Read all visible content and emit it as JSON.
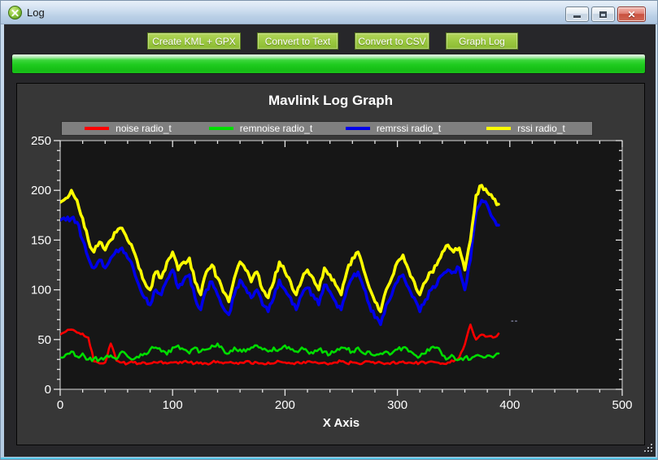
{
  "window": {
    "title": "Log"
  },
  "toolbar": {
    "buttons": [
      "Create KML + GPX",
      "Convert to Text",
      "Convert to CSV",
      "Graph Log"
    ]
  },
  "progress": {
    "percent": 100,
    "color": "#1ecb1e"
  },
  "chart": {
    "artifact_text": "--",
    "legend_background": "#7f7f7f",
    "plot_border_color": "#d8d8d8"
  },
  "chart_data": {
    "type": "line",
    "title": "Mavlink Log Graph",
    "xlabel": "X Axis",
    "ylabel": "",
    "xlim": [
      0,
      500
    ],
    "ylim": [
      0,
      250
    ],
    "x_major_ticks": [
      0,
      100,
      200,
      300,
      400,
      500
    ],
    "y_major_ticks": [
      0,
      50,
      100,
      150,
      200,
      250
    ],
    "x_minor_step": 20,
    "y_minor_step": 10,
    "grid": false,
    "legend_position": "top",
    "plot_background": "#161616",
    "x": [
      0,
      5,
      10,
      15,
      20,
      25,
      30,
      35,
      40,
      45,
      50,
      55,
      60,
      65,
      70,
      75,
      80,
      85,
      90,
      95,
      100,
      105,
      110,
      115,
      120,
      125,
      130,
      135,
      140,
      145,
      150,
      155,
      160,
      165,
      170,
      175,
      180,
      185,
      190,
      195,
      200,
      205,
      210,
      215,
      220,
      225,
      230,
      235,
      240,
      245,
      250,
      255,
      260,
      265,
      270,
      275,
      280,
      285,
      290,
      295,
      300,
      305,
      310,
      315,
      320,
      325,
      330,
      335,
      340,
      345,
      350,
      355,
      360,
      365,
      370,
      375,
      380,
      385,
      390
    ],
    "series": [
      {
        "name": "noise radio_t",
        "color": "#ff0000",
        "values": [
          55,
          58,
          60,
          57,
          56,
          52,
          28,
          26,
          27,
          46,
          29,
          27,
          26,
          27,
          26,
          27,
          26,
          27,
          28,
          26,
          27,
          26,
          28,
          27,
          26,
          27,
          26,
          27,
          28,
          26,
          27,
          26,
          27,
          28,
          26,
          27,
          26,
          27,
          26,
          28,
          27,
          26,
          27,
          26,
          28,
          27,
          26,
          27,
          26,
          27,
          28,
          26,
          27,
          26,
          27,
          28,
          26,
          27,
          26,
          27,
          26,
          28,
          27,
          26,
          27,
          26,
          28,
          27,
          26,
          27,
          28,
          32,
          45,
          65,
          50,
          55,
          53,
          52,
          56
        ]
      },
      {
        "name": "remnoise radio_t",
        "color": "#00dd00",
        "values": [
          32,
          35,
          38,
          33,
          36,
          30,
          31,
          30,
          32,
          34,
          30,
          38,
          33,
          30,
          32,
          36,
          40,
          42,
          38,
          35,
          42,
          44,
          40,
          36,
          42,
          38,
          40,
          44,
          46,
          40,
          36,
          42,
          40,
          38,
          42,
          44,
          40,
          38,
          42,
          40,
          44,
          40,
          38,
          42,
          38,
          36,
          40,
          38,
          35,
          38,
          42,
          40,
          38,
          42,
          36,
          38,
          34,
          36,
          38,
          36,
          40,
          42,
          38,
          35,
          33,
          36,
          42,
          42,
          34,
          31,
          33,
          30,
          32,
          30,
          34,
          33,
          34,
          32,
          36
        ]
      },
      {
        "name": "remrssi radio_t",
        "color": "#0000e8",
        "values": [
          170,
          170,
          172,
          168,
          150,
          132,
          122,
          130,
          122,
          132,
          140,
          142,
          132,
          122,
          105,
          92,
          85,
          100,
          95,
          110,
          120,
          102,
          110,
          115,
          92,
          80,
          100,
          108,
          95,
          82,
          75,
          95,
          110,
          102,
          92,
          100,
          85,
          78,
          92,
          110,
          100,
          92,
          80,
          95,
          102,
          95,
          85,
          105,
          98,
          88,
          80,
          100,
          112,
          118,
          102,
          85,
          72,
          65,
          85,
          95,
          108,
          115,
          102,
          92,
          78,
          90,
          100,
          105,
          115,
          120,
          118,
          122,
          100,
          130,
          178,
          190,
          185,
          172,
          165
        ]
      },
      {
        "name": "rssi radio_t",
        "color": "#ffff00",
        "values": [
          188,
          192,
          200,
          190,
          172,
          150,
          138,
          148,
          140,
          150,
          158,
          162,
          150,
          140,
          122,
          108,
          100,
          118,
          112,
          128,
          138,
          120,
          128,
          132,
          108,
          95,
          118,
          125,
          112,
          98,
          88,
          112,
          128,
          120,
          108,
          118,
          100,
          92,
          108,
          128,
          118,
          108,
          95,
          110,
          120,
          112,
          100,
          122,
          115,
          105,
          95,
          118,
          132,
          138,
          120,
          102,
          88,
          78,
          100,
          112,
          128,
          135,
          120,
          108,
          95,
          108,
          118,
          125,
          138,
          145,
          138,
          142,
          120,
          150,
          195,
          205,
          198,
          192,
          186
        ]
      }
    ]
  }
}
